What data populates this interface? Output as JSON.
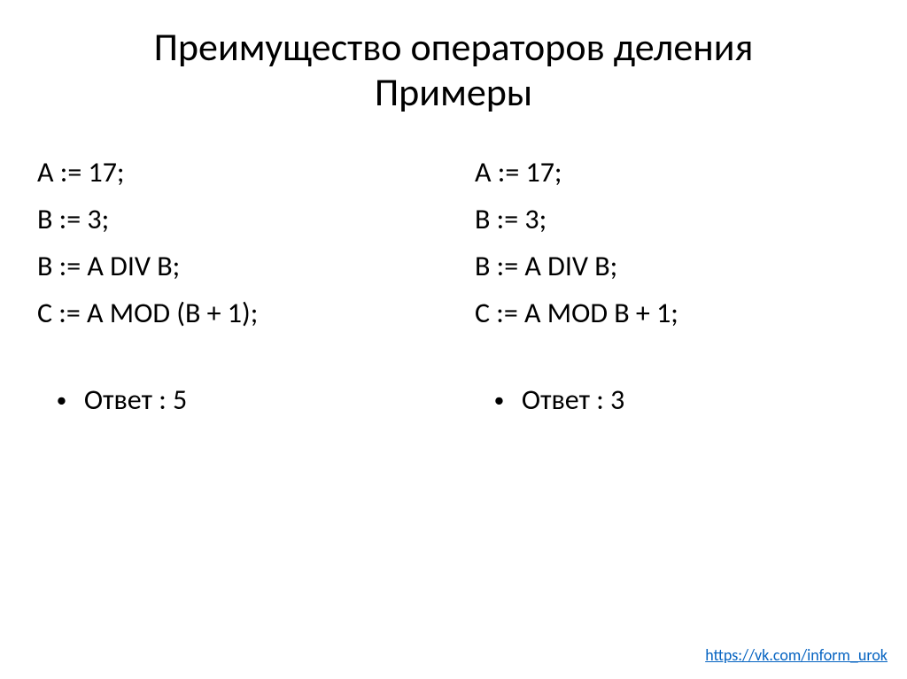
{
  "title_line1": "Преимущество операторов деления",
  "title_line2": "Примеры",
  "left": {
    "line1": "A := 17;",
    "line2": "B := 3;",
    "line3": "B := A DIV B;",
    "line4": "C := A MOD (B + 1);",
    "answer": "Ответ : 5"
  },
  "right": {
    "line1": "A := 17;",
    "line2": "B := 3;",
    "line3": "B := A DIV B;",
    "line4": "C := A MOD B + 1;",
    "answer": "Ответ : 3"
  },
  "link": "https://vk.com/inform_urok"
}
